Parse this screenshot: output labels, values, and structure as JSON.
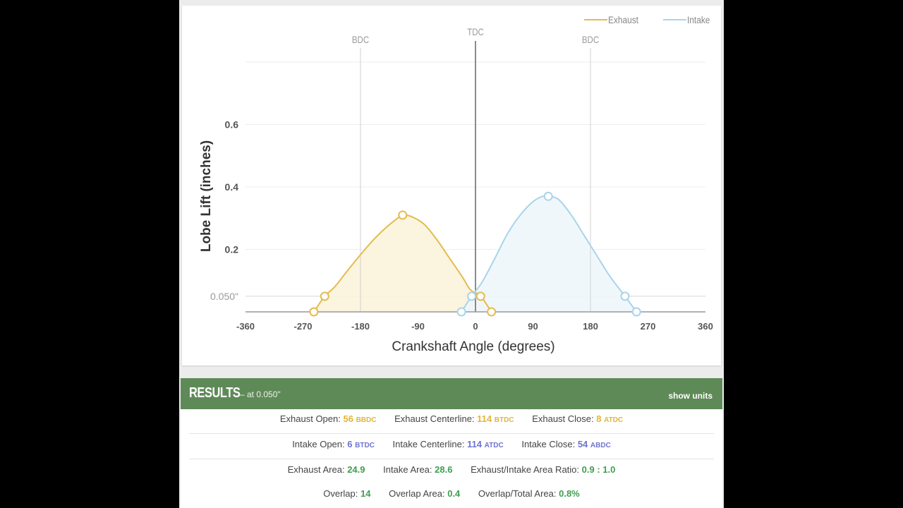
{
  "chart_data": {
    "type": "area",
    "xlabel": "Crankshaft Angle (degrees)",
    "ylabel": "Lobe Lift (inches)",
    "xlim": [
      -360,
      360
    ],
    "ylim": [
      0,
      0.8
    ],
    "x_ticks": [
      "-360",
      "-270",
      "-180",
      "-90",
      "0",
      "90",
      "180",
      "270",
      "360"
    ],
    "x_tick_values": [
      -360,
      -270,
      -180,
      -90,
      0,
      90,
      180,
      270,
      360
    ],
    "y_ticks": [
      "0.6",
      "0.4",
      "0.2"
    ],
    "y_tick_values": [
      0.6,
      0.4,
      0.2
    ],
    "reference_line": {
      "label": "0.050\"",
      "value": 0.05
    },
    "vertical_markers": [
      {
        "label": "BDC",
        "x": -180
      },
      {
        "label": "TDC",
        "x": 0
      },
      {
        "label": "BDC",
        "x": 180
      }
    ],
    "legend": [
      {
        "name": "Exhaust",
        "color": "#e3bc4f"
      },
      {
        "name": "Intake",
        "color": "#a9d4ea"
      }
    ],
    "series": [
      {
        "name": "Exhaust",
        "color": "#e3bc4f",
        "fill": "#fbf3dc",
        "points": [
          [
            -253,
            0
          ],
          [
            -236,
            0.05
          ],
          [
            -220,
            0.081
          ],
          [
            -200,
            0.133
          ],
          [
            -180,
            0.183
          ],
          [
            -160,
            0.23
          ],
          [
            -140,
            0.27
          ],
          [
            -125,
            0.295
          ],
          [
            -114,
            0.31
          ],
          [
            -100,
            0.305
          ],
          [
            -80,
            0.28
          ],
          [
            -60,
            0.23
          ],
          [
            -40,
            0.17
          ],
          [
            -20,
            0.11
          ],
          [
            -8,
            0.071
          ],
          [
            8,
            0.05
          ],
          [
            25,
            0
          ]
        ],
        "markers": [
          [
            -253,
            0
          ],
          [
            -236,
            0.05
          ],
          [
            -114,
            0.31
          ],
          [
            8,
            0.05
          ],
          [
            25,
            0
          ]
        ]
      },
      {
        "name": "Intake",
        "color": "#a9d4ea",
        "fill": "#eef6fb",
        "points": [
          [
            -22,
            0
          ],
          [
            -6,
            0.05
          ],
          [
            10,
            0.094
          ],
          [
            30,
            0.17
          ],
          [
            50,
            0.25
          ],
          [
            70,
            0.31
          ],
          [
            90,
            0.353
          ],
          [
            105,
            0.37
          ],
          [
            114,
            0.37
          ],
          [
            130,
            0.36
          ],
          [
            150,
            0.31
          ],
          [
            170,
            0.245
          ],
          [
            190,
            0.18
          ],
          [
            210,
            0.115
          ],
          [
            234,
            0.05
          ],
          [
            252,
            0
          ]
        ],
        "markers": [
          [
            -22,
            0
          ],
          [
            -6,
            0.05
          ],
          [
            114,
            0.37
          ],
          [
            234,
            0.05
          ],
          [
            252,
            0
          ]
        ]
      }
    ]
  },
  "results": {
    "title": "RESULTS",
    "subtitle": "– at 0.050\"",
    "show_units": "show units",
    "row1": {
      "exhaust_open": {
        "label": "Exhaust Open:",
        "value": "56",
        "unit": "BBDC"
      },
      "exhaust_centerline": {
        "label": "Exhaust Centerline:",
        "value": "114",
        "unit": "BTDC"
      },
      "exhaust_close": {
        "label": "Exhaust Close:",
        "value": "8",
        "unit": "ATDC"
      }
    },
    "row2": {
      "intake_open": {
        "label": "Intake Open:",
        "value": "6",
        "unit": "BTDC"
      },
      "intake_centerline": {
        "label": "Intake Centerline:",
        "value": "114",
        "unit": "ATDC"
      },
      "intake_close": {
        "label": "Intake Close:",
        "value": "54",
        "unit": "ABDC"
      }
    },
    "row3": {
      "exhaust_area": {
        "label": "Exhaust Area:",
        "value": "24.9"
      },
      "intake_area": {
        "label": "Intake Area:",
        "value": "28.6"
      },
      "area_ratio": {
        "label": "Exhaust/Intake Area Ratio:",
        "value": "0.9 : 1.0"
      }
    },
    "row4": {
      "overlap": {
        "label": "Overlap:",
        "value": "14"
      },
      "overlap_area": {
        "label": "Overlap Area:",
        "value": "0.4"
      },
      "overlap_total": {
        "label": "Overlap/Total Area:",
        "value": "0.8%"
      }
    }
  }
}
